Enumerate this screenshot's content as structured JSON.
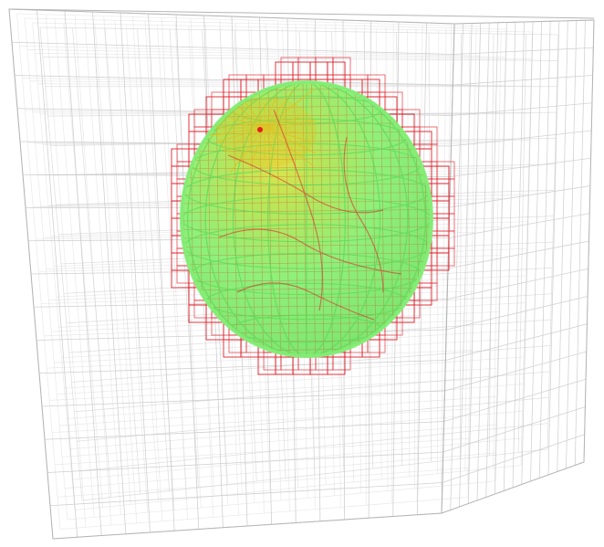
{
  "scene": {
    "grid_divisions": 16,
    "colors": {
      "background": "#ffffff",
      "background_grid": "#c8c8c8",
      "refined_cells": "#e0202a",
      "sphere_fill": "#8ff07a",
      "sphere_mesh": "#5fd85a",
      "sphere_highlight": "#e2c020",
      "sphere_core_lines": "#c84a2a"
    }
  }
}
